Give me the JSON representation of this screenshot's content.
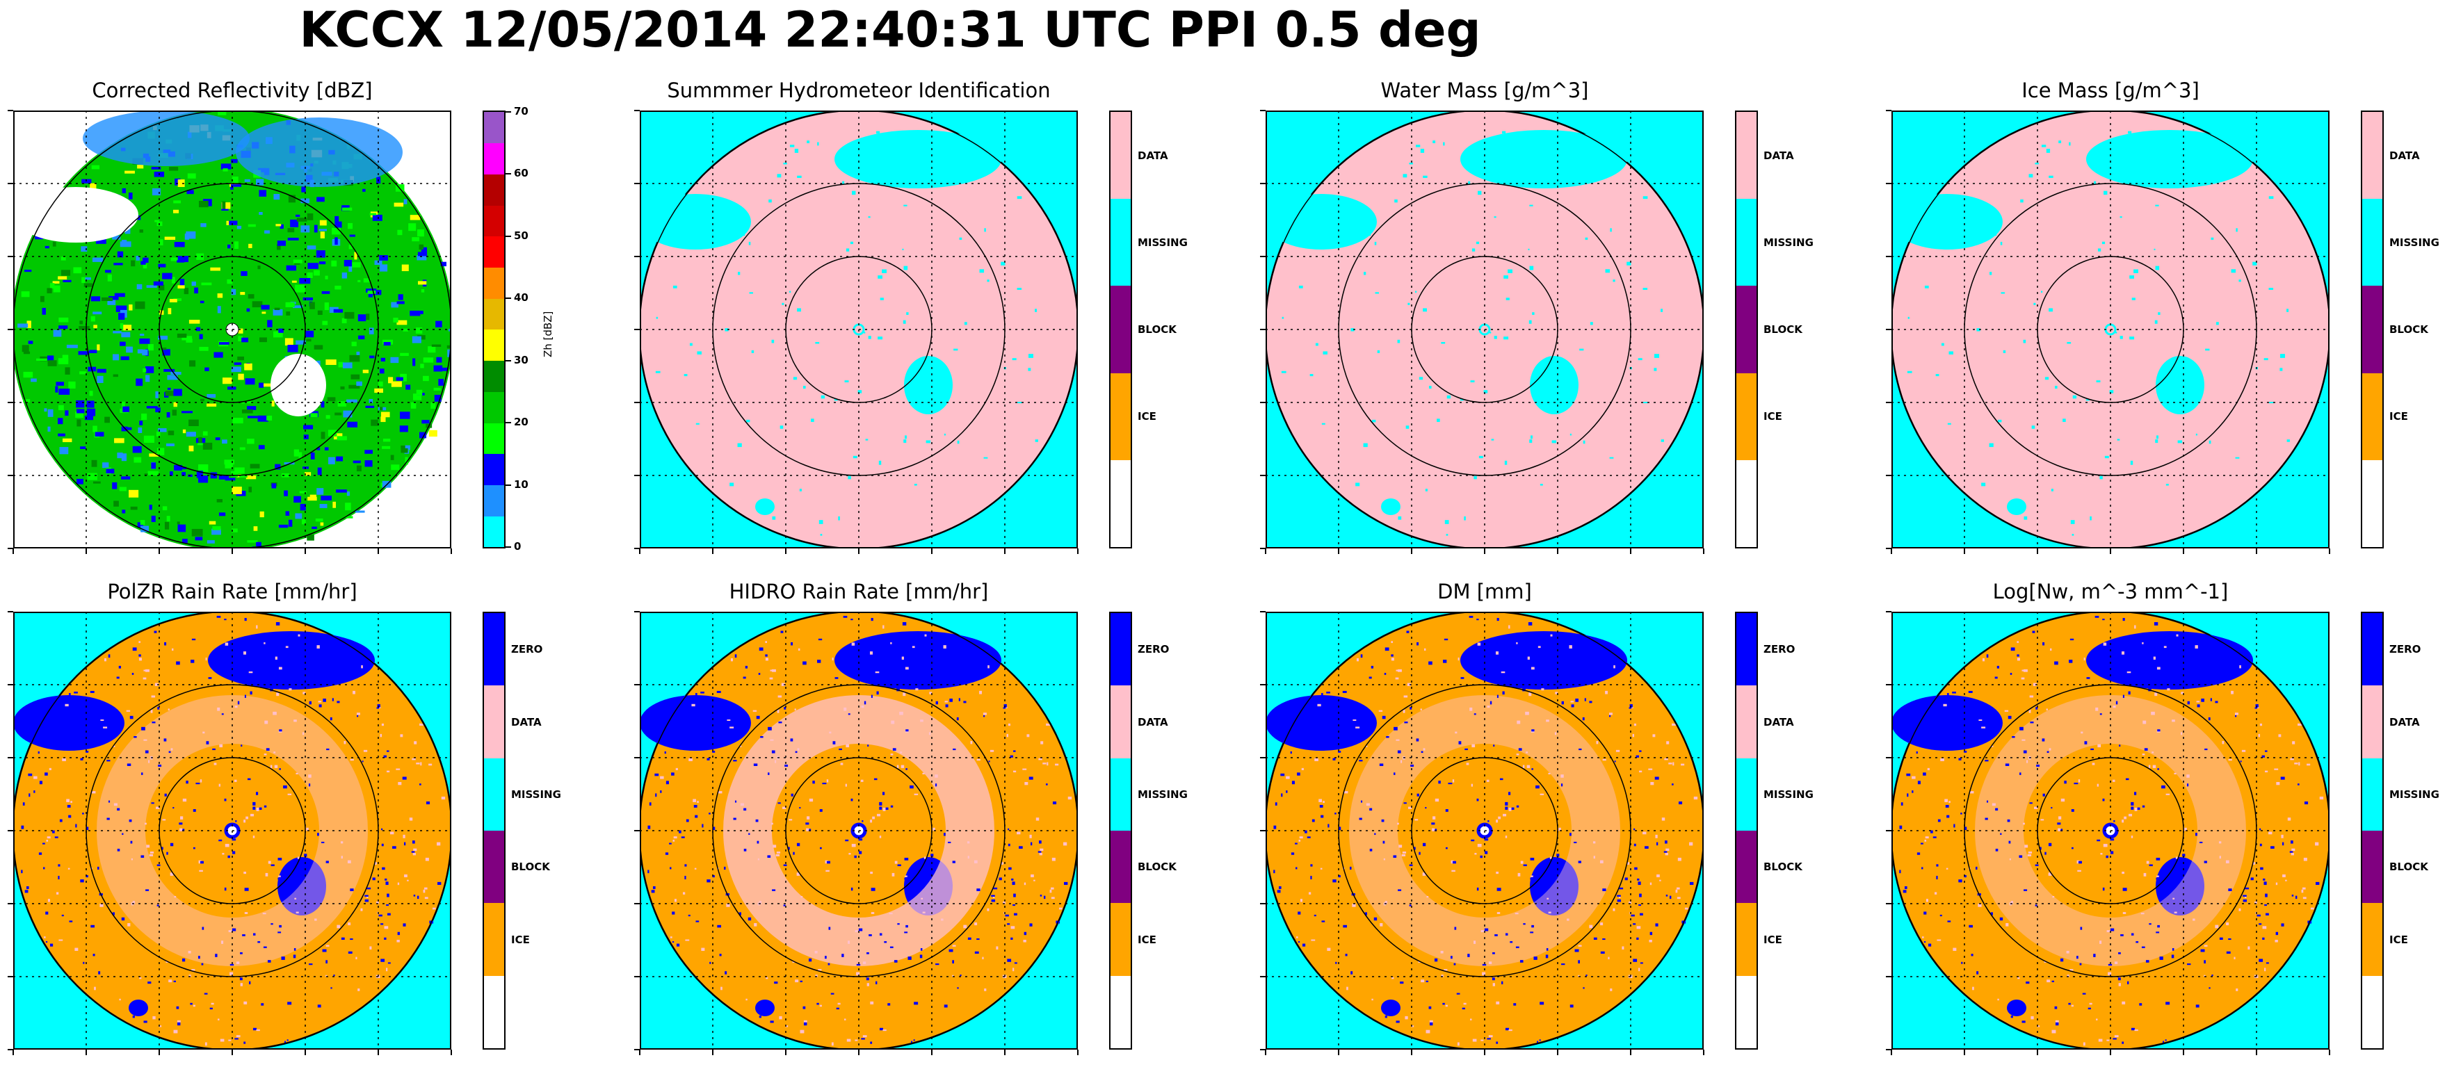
{
  "figure": {
    "suptitle": "KCCX 12/05/2014 22:40:31 UTC PPI 0.5 deg"
  },
  "colors": {
    "data": "#ffc0cb",
    "missing": "#00ffff",
    "block": "#800080",
    "ice": "#ffa500",
    "zero": "#0000ff",
    "empty": "#ffffff"
  },
  "chart_data": [
    {
      "type": "heatmap",
      "title": "Corrected Reflectivity [dBZ]",
      "colorbar_label": "Zh [dBZ]",
      "colorbar_ticks": [
        "0",
        "10",
        "20",
        "30",
        "40",
        "50",
        "60",
        "70"
      ],
      "range_rings": 3,
      "grid": true,
      "colormap_colors": [
        "#00ffff",
        "#1e90ff",
        "#0000ff",
        "#00ff00",
        "#00c800",
        "#008c00",
        "#ffff00",
        "#e6b800",
        "#ff8c00",
        "#ff0000",
        "#d40000",
        "#b40000",
        "#ff00ff",
        "#9955c9"
      ]
    },
    {
      "type": "heatmap",
      "title": "Summmer Hydrometeor Identification",
      "categories": [
        "DATA",
        "MISSING",
        "BLOCK",
        "ICE"
      ],
      "range_rings": 3,
      "grid": true
    },
    {
      "type": "heatmap",
      "title": "Water Mass [g/m^3]",
      "categories": [
        "DATA",
        "MISSING",
        "BLOCK",
        "ICE"
      ],
      "range_rings": 3,
      "grid": true
    },
    {
      "type": "heatmap",
      "title": "Ice Mass [g/m^3]",
      "categories": [
        "DATA",
        "MISSING",
        "BLOCK",
        "ICE"
      ],
      "range_rings": 3,
      "grid": true
    },
    {
      "type": "heatmap",
      "title": "PolZR Rain Rate [mm/hr]",
      "categories": [
        "ZERO",
        "DATA",
        "MISSING",
        "BLOCK",
        "ICE"
      ],
      "range_rings": 3,
      "grid": true
    },
    {
      "type": "heatmap",
      "title": "HIDRO Rain Rate [mm/hr]",
      "categories": [
        "ZERO",
        "DATA",
        "MISSING",
        "BLOCK",
        "ICE"
      ],
      "range_rings": 3,
      "grid": true
    },
    {
      "type": "heatmap",
      "title": "DM [mm]",
      "categories": [
        "ZERO",
        "DATA",
        "MISSING",
        "BLOCK",
        "ICE"
      ],
      "range_rings": 3,
      "grid": true
    },
    {
      "type": "heatmap",
      "title": "Log[Nw, m^-3 mm^-1]",
      "categories": [
        "ZERO",
        "DATA",
        "MISSING",
        "BLOCK",
        "ICE"
      ],
      "range_rings": 3,
      "grid": true
    }
  ]
}
